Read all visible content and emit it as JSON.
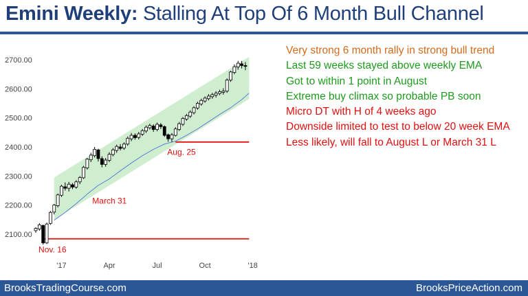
{
  "title": {
    "bold": "Emini Weekly:",
    "rest": "Stalling At Top Of 6 Month Bull Channel"
  },
  "notes": [
    {
      "text": "Very strong 6 month rally in strong bull trend",
      "color": "#d36a1c"
    },
    {
      "text": "Last 59 weeks stayed above weekly EMA",
      "color": "#1e9a1e"
    },
    {
      "text": "Got to within 1 point in August",
      "color": "#1e9a1e"
    },
    {
      "text": "Extreme buy climax so probable PB soon",
      "color": "#1e9a1e"
    },
    {
      "text": "Micro DT with H of 4 weeks ago",
      "color": "#e01010"
    },
    {
      "text": "Downside limited to test to below 20 week EMA",
      "color": "#e01010"
    },
    {
      "text": "Less likely, will fall to August L or March 31 L",
      "color": "#e01010"
    }
  ],
  "footer": {
    "left": "BrooksTradingCourse.com",
    "right": "BrooksPriceAction.com"
  },
  "chart_data": {
    "type": "candlestick",
    "yticks": [
      "2700.00",
      "2600.00",
      "2500.00",
      "2400.00",
      "2300.00",
      "2200.00",
      "2100.00"
    ],
    "ylim": [
      2070,
      2720
    ],
    "xticks": [
      {
        "label": "'17",
        "week": 7
      },
      {
        "label": "Apr",
        "week": 20
      },
      {
        "label": "Jul",
        "week": 33
      },
      {
        "label": "Oct",
        "week": 46
      },
      {
        "label": "'18",
        "week": 59
      }
    ],
    "annotations": [
      {
        "text": "Nov. 16",
        "color": "#e01010",
        "week": 3,
        "price": 2080
      },
      {
        "text": "March 31",
        "color": "#e01010",
        "week": 18,
        "price": 2240
      },
      {
        "text": "Aug. 25",
        "color": "#e01010",
        "week": 38,
        "price": 2420
      }
    ],
    "horizontal_lines": [
      {
        "price": 2417,
        "from_week": 38,
        "to_week": 58,
        "color": "#e01010"
      },
      {
        "price": 2084,
        "from_week": 2,
        "to_week": 58,
        "color": "#e01010"
      }
    ],
    "channel": {
      "color": "#cfeecf",
      "lower_start": {
        "week": 5,
        "price": 2150
      },
      "lower_end": {
        "week": 58,
        "price": 2565
      },
      "upper_start": {
        "week": 5,
        "price": 2295
      },
      "upper_end": {
        "week": 58,
        "price": 2710
      }
    },
    "ema": {
      "name": "20 week EMA",
      "color": "#5b7fd6",
      "points": [
        [
          5,
          2148
        ],
        [
          8,
          2175
        ],
        [
          11,
          2205
        ],
        [
          14,
          2238
        ],
        [
          17,
          2268
        ],
        [
          20,
          2290
        ],
        [
          23,
          2318
        ],
        [
          26,
          2345
        ],
        [
          29,
          2370
        ],
        [
          32,
          2392
        ],
        [
          35,
          2410
        ],
        [
          38,
          2420
        ],
        [
          41,
          2440
        ],
        [
          44,
          2462
        ],
        [
          47,
          2487
        ],
        [
          50,
          2512
        ],
        [
          53,
          2535
        ],
        [
          56,
          2563
        ],
        [
          58,
          2585
        ]
      ]
    },
    "candles": [
      [
        2112,
        2120,
        2105,
        2124
      ],
      [
        2118,
        2132,
        2112,
        2138
      ],
      [
        2130,
        2070,
        2064,
        2133
      ],
      [
        2070,
        2135,
        2066,
        2140
      ],
      [
        2137,
        2175,
        2132,
        2180
      ],
      [
        2176,
        2200,
        2168,
        2204
      ],
      [
        2198,
        2235,
        2192,
        2240
      ],
      [
        2234,
        2265,
        2228,
        2270
      ],
      [
        2263,
        2258,
        2250,
        2278
      ],
      [
        2258,
        2272,
        2247,
        2280
      ],
      [
        2270,
        2262,
        2255,
        2276
      ],
      [
        2262,
        2280,
        2256,
        2286
      ],
      [
        2280,
        2295,
        2272,
        2300
      ],
      [
        2294,
        2330,
        2290,
        2335
      ],
      [
        2328,
        2358,
        2322,
        2362
      ],
      [
        2356,
        2372,
        2348,
        2380
      ],
      [
        2370,
        2392,
        2364,
        2400
      ],
      [
        2390,
        2360,
        2350,
        2394
      ],
      [
        2360,
        2340,
        2330,
        2368
      ],
      [
        2340,
        2355,
        2332,
        2362
      ],
      [
        2354,
        2375,
        2348,
        2382
      ],
      [
        2374,
        2390,
        2368,
        2396
      ],
      [
        2388,
        2402,
        2380,
        2408
      ],
      [
        2400,
        2395,
        2388,
        2410
      ],
      [
        2396,
        2410,
        2390,
        2416
      ],
      [
        2410,
        2430,
        2404,
        2436
      ],
      [
        2428,
        2440,
        2420,
        2448
      ],
      [
        2440,
        2432,
        2425,
        2447
      ],
      [
        2433,
        2445,
        2426,
        2452
      ],
      [
        2444,
        2456,
        2438,
        2462
      ],
      [
        2455,
        2468,
        2448,
        2474
      ],
      [
        2466,
        2474,
        2460,
        2480
      ],
      [
        2472,
        2460,
        2452,
        2478
      ],
      [
        2460,
        2478,
        2454,
        2484
      ],
      [
        2476,
        2470,
        2462,
        2482
      ],
      [
        2470,
        2440,
        2435,
        2474
      ],
      [
        2442,
        2428,
        2418,
        2446
      ],
      [
        2428,
        2442,
        2417,
        2448
      ],
      [
        2440,
        2462,
        2436,
        2468
      ],
      [
        2460,
        2480,
        2455,
        2486
      ],
      [
        2478,
        2498,
        2472,
        2503
      ],
      [
        2496,
        2508,
        2490,
        2514
      ],
      [
        2506,
        2520,
        2500,
        2526
      ],
      [
        2518,
        2535,
        2512,
        2540
      ],
      [
        2534,
        2550,
        2528,
        2556
      ],
      [
        2548,
        2560,
        2542,
        2566
      ],
      [
        2558,
        2568,
        2552,
        2574
      ],
      [
        2566,
        2575,
        2560,
        2582
      ],
      [
        2573,
        2580,
        2566,
        2586
      ],
      [
        2578,
        2585,
        2570,
        2592
      ],
      [
        2584,
        2590,
        2578,
        2597
      ],
      [
        2588,
        2592,
        2580,
        2602
      ],
      [
        2592,
        2630,
        2586,
        2636
      ],
      [
        2630,
        2658,
        2624,
        2662
      ],
      [
        2656,
        2676,
        2650,
        2684
      ],
      [
        2675,
        2688,
        2666,
        2696
      ],
      [
        2686,
        2680,
        2670,
        2696
      ],
      [
        2680,
        2678,
        2664,
        2692
      ]
    ]
  }
}
